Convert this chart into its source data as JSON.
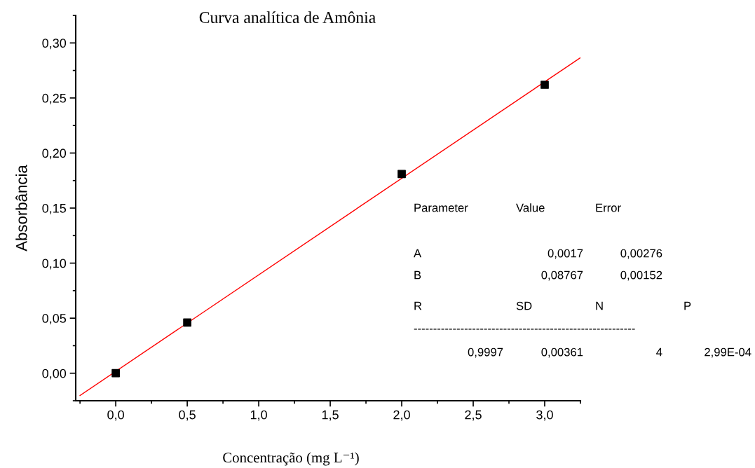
{
  "chart_data": {
    "type": "scatter",
    "title": "Curva analítica de Amônia",
    "xlabel": "Concentração (mg L⁻¹)",
    "ylabel": "Absorbância",
    "x": [
      0,
      0.5,
      2,
      3
    ],
    "series": [
      {
        "color": "#000000",
        "marker": "square",
        "values": [
          0,
          0.046,
          0.181,
          0.262
        ]
      },
      {
        "type": "line",
        "color": "#ff0000",
        "marker": "none",
        "line_style": "solid",
        "x": [
          -0.25,
          3.25
        ],
        "values": [
          -0.0202,
          0.2866
        ]
      }
    ],
    "xlim": [
      -0.28,
      3.25
    ],
    "ylim": [
      -0.025,
      0.325
    ],
    "xticks": [
      {
        "value": 0,
        "label": "0,0"
      },
      {
        "value": 0.5,
        "label": "0,5"
      },
      {
        "value": 1,
        "label": "1,0"
      },
      {
        "value": 1.5,
        "label": "1,5"
      },
      {
        "value": 2,
        "label": "2,0"
      },
      {
        "value": 2.5,
        "label": "2,5"
      },
      {
        "value": 3,
        "label": "3,0"
      }
    ],
    "yticks": [
      {
        "value": 0,
        "label": "0,00"
      },
      {
        "value": 0.05,
        "label": "0,05"
      },
      {
        "value": 0.1,
        "label": "0,10"
      },
      {
        "value": 0.15,
        "label": "0,15"
      },
      {
        "value": 0.2,
        "label": "0,20"
      },
      {
        "value": 0.25,
        "label": "0,25"
      },
      {
        "value": 0.3,
        "label": "0,30"
      }
    ],
    "grid": false,
    "legend": false,
    "annotations": [
      "Parameter",
      "Value",
      "Error",
      "A",
      "0,0017",
      "0,00276",
      "B",
      "0,08767",
      "0,00152",
      "R",
      "SD",
      "N",
      "P",
      "---------------------------------------------------------",
      "0,9997",
      "0,00361",
      "4",
      "2,99E-04"
    ]
  }
}
